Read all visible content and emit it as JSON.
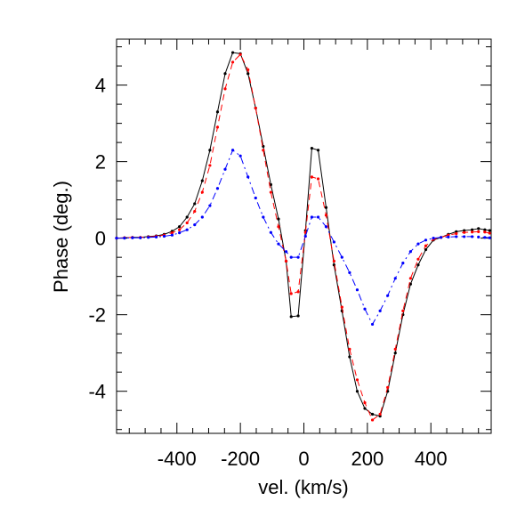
{
  "chart_data": {
    "type": "line",
    "xlabel": "vel. (km/s)",
    "ylabel": "Phase (deg.)",
    "xlim": [
      -590,
      590
    ],
    "ylim": [
      -5.1,
      5.2
    ],
    "xticks": [
      -400,
      -200,
      0,
      200,
      400
    ],
    "xtick_labels": [
      "-400",
      "-200",
      "0",
      "200",
      "400"
    ],
    "yticks": [
      -4,
      -2,
      0,
      2,
      4
    ],
    "ytick_labels": [
      "-4",
      "-2",
      "0",
      "2",
      "4"
    ],
    "grid": false,
    "series": [
      {
        "color": "#000000",
        "line_style": "solid",
        "points": [
          [
            -590,
            0.0
          ],
          [
            -565,
            0.01
          ],
          [
            -540,
            0.02
          ],
          [
            -515,
            0.02
          ],
          [
            -490,
            0.04
          ],
          [
            -465,
            0.06
          ],
          [
            -440,
            0.1
          ],
          [
            -415,
            0.18
          ],
          [
            -392,
            0.3
          ],
          [
            -368,
            0.55
          ],
          [
            -344,
            0.9
          ],
          [
            -320,
            1.5
          ],
          [
            -296,
            2.3
          ],
          [
            -272,
            3.3
          ],
          [
            -248,
            4.3
          ],
          [
            -224,
            4.85
          ],
          [
            -200,
            4.82
          ],
          [
            -176,
            4.3
          ],
          [
            -152,
            3.4
          ],
          [
            -128,
            2.4
          ],
          [
            -104,
            1.4
          ],
          [
            -80,
            0.5
          ],
          [
            -56,
            -0.6
          ],
          [
            -40,
            -2.05
          ],
          [
            -18,
            -2.03
          ],
          [
            5,
            0.2
          ],
          [
            25,
            2.35
          ],
          [
            45,
            2.3
          ],
          [
            70,
            0.8
          ],
          [
            95,
            -0.7
          ],
          [
            120,
            -1.9
          ],
          [
            144,
            -3.1
          ],
          [
            168,
            -4.0
          ],
          [
            192,
            -4.45
          ],
          [
            216,
            -4.6
          ],
          [
            240,
            -4.65
          ],
          [
            264,
            -4.0
          ],
          [
            288,
            -3.0
          ],
          [
            312,
            -2.0
          ],
          [
            336,
            -1.2
          ],
          [
            360,
            -0.7
          ],
          [
            384,
            -0.3
          ],
          [
            408,
            -0.05
          ],
          [
            432,
            0.02
          ],
          [
            455,
            0.1
          ],
          [
            480,
            0.17
          ],
          [
            505,
            0.2
          ],
          [
            530,
            0.22
          ],
          [
            550,
            0.25
          ],
          [
            570,
            0.22
          ],
          [
            585,
            0.2
          ]
        ]
      },
      {
        "color": "#ff0000",
        "line_style": "dashed",
        "points": [
          [
            -590,
            0.0
          ],
          [
            -565,
            0.01
          ],
          [
            -540,
            0.02
          ],
          [
            -515,
            0.02
          ],
          [
            -490,
            0.03
          ],
          [
            -465,
            0.05
          ],
          [
            -440,
            0.08
          ],
          [
            -415,
            0.14
          ],
          [
            -392,
            0.22
          ],
          [
            -368,
            0.4
          ],
          [
            -344,
            0.7
          ],
          [
            -320,
            1.2
          ],
          [
            -296,
            1.9
          ],
          [
            -272,
            2.9
          ],
          [
            -248,
            3.9
          ],
          [
            -224,
            4.6
          ],
          [
            -200,
            4.8
          ],
          [
            -176,
            4.4
          ],
          [
            -152,
            3.4
          ],
          [
            -128,
            2.3
          ],
          [
            -104,
            1.2
          ],
          [
            -80,
            0.3
          ],
          [
            -56,
            -0.6
          ],
          [
            -40,
            -1.45
          ],
          [
            -18,
            -1.4
          ],
          [
            5,
            0.15
          ],
          [
            25,
            1.6
          ],
          [
            45,
            1.55
          ],
          [
            70,
            0.6
          ],
          [
            95,
            -0.6
          ],
          [
            120,
            -1.8
          ],
          [
            144,
            -2.9
          ],
          [
            168,
            -3.7
          ],
          [
            192,
            -4.3
          ],
          [
            216,
            -4.75
          ],
          [
            240,
            -4.6
          ],
          [
            264,
            -3.9
          ],
          [
            288,
            -2.9
          ],
          [
            312,
            -1.9
          ],
          [
            336,
            -1.05
          ],
          [
            360,
            -0.55
          ],
          [
            384,
            -0.2
          ],
          [
            408,
            -0.03
          ],
          [
            432,
            0.02
          ],
          [
            455,
            0.08
          ],
          [
            480,
            0.12
          ],
          [
            505,
            0.15
          ],
          [
            530,
            0.16
          ],
          [
            550,
            0.17
          ],
          [
            570,
            0.16
          ],
          [
            585,
            0.13
          ]
        ]
      },
      {
        "color": "#0000ff",
        "line_style": "dash-dot",
        "points": [
          [
            -590,
            0.0
          ],
          [
            -565,
            0.0
          ],
          [
            -540,
            0.01
          ],
          [
            -515,
            0.01
          ],
          [
            -490,
            0.02
          ],
          [
            -465,
            0.03
          ],
          [
            -440,
            0.05
          ],
          [
            -415,
            0.08
          ],
          [
            -392,
            0.14
          ],
          [
            -368,
            0.22
          ],
          [
            -344,
            0.35
          ],
          [
            -320,
            0.55
          ],
          [
            -296,
            0.85
          ],
          [
            -272,
            1.3
          ],
          [
            -248,
            1.8
          ],
          [
            -224,
            2.3
          ],
          [
            -200,
            2.15
          ],
          [
            -176,
            1.6
          ],
          [
            -152,
            1.05
          ],
          [
            -128,
            0.55
          ],
          [
            -104,
            0.15
          ],
          [
            -80,
            -0.15
          ],
          [
            -56,
            -0.35
          ],
          [
            -40,
            -0.5
          ],
          [
            -18,
            -0.5
          ],
          [
            5,
            0.05
          ],
          [
            25,
            0.55
          ],
          [
            45,
            0.55
          ],
          [
            70,
            0.3
          ],
          [
            95,
            -0.1
          ],
          [
            120,
            -0.5
          ],
          [
            144,
            -0.9
          ],
          [
            168,
            -1.35
          ],
          [
            192,
            -1.85
          ],
          [
            216,
            -2.25
          ],
          [
            240,
            -1.9
          ],
          [
            264,
            -1.5
          ],
          [
            288,
            -1.05
          ],
          [
            312,
            -0.65
          ],
          [
            336,
            -0.35
          ],
          [
            360,
            -0.15
          ],
          [
            384,
            -0.05
          ],
          [
            408,
            0.0
          ],
          [
            432,
            0.02
          ],
          [
            455,
            0.03
          ],
          [
            480,
            0.04
          ],
          [
            505,
            0.04
          ],
          [
            530,
            0.04
          ],
          [
            550,
            0.03
          ],
          [
            570,
            0.02
          ],
          [
            585,
            0.01
          ]
        ]
      }
    ]
  }
}
